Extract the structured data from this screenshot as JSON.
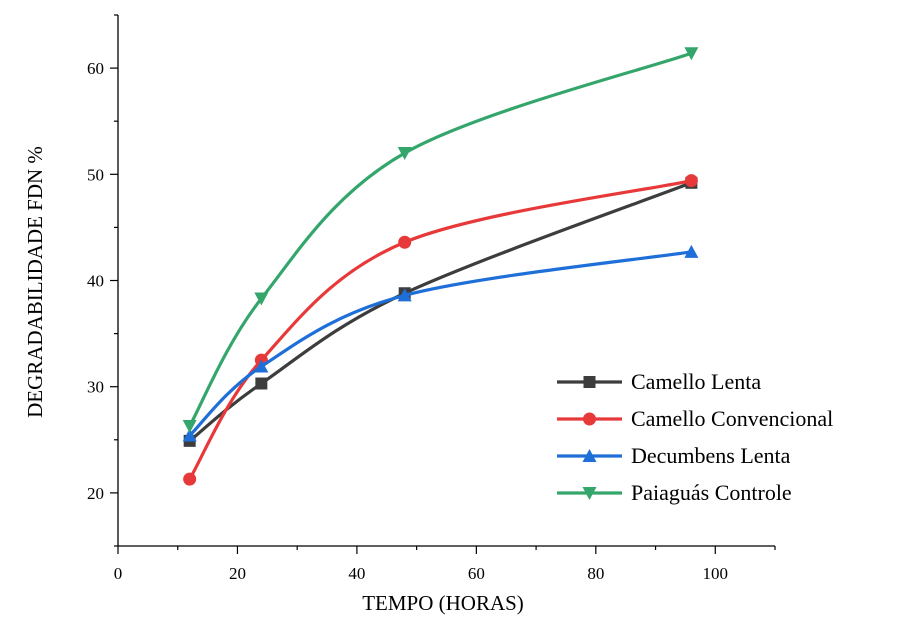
{
  "chart_data": {
    "type": "line",
    "title": "",
    "xlabel": "TEMPO (HORAS)",
    "ylabel": "DEGRADABILIDADE  FDN %",
    "xlim": [
      0,
      110
    ],
    "ylim": [
      15,
      65
    ],
    "xticks": [
      0,
      20,
      40,
      60,
      80,
      100
    ],
    "yticks": [
      20,
      30,
      40,
      50,
      60
    ],
    "x": [
      12,
      24,
      48,
      96
    ],
    "grid": false,
    "legend_position": "bottom-right",
    "series": [
      {
        "name": "Camello Lenta",
        "marker": "square",
        "color": "#3d3d3d",
        "values": [
          24.9,
          30.3,
          38.8,
          49.2
        ]
      },
      {
        "name": "Camello Convencional",
        "marker": "circle",
        "color": "#e8393a",
        "values": [
          21.3,
          32.5,
          43.6,
          49.4
        ]
      },
      {
        "name": "Decumbens Lenta",
        "marker": "triangle-up",
        "color": "#1f6fd8",
        "values": [
          25.4,
          31.9,
          38.6,
          42.7
        ]
      },
      {
        "name": "Paiaguás Controle",
        "marker": "triangle-down",
        "color": "#34a66b",
        "values": [
          26.3,
          38.3,
          52.0,
          61.4
        ]
      }
    ]
  }
}
